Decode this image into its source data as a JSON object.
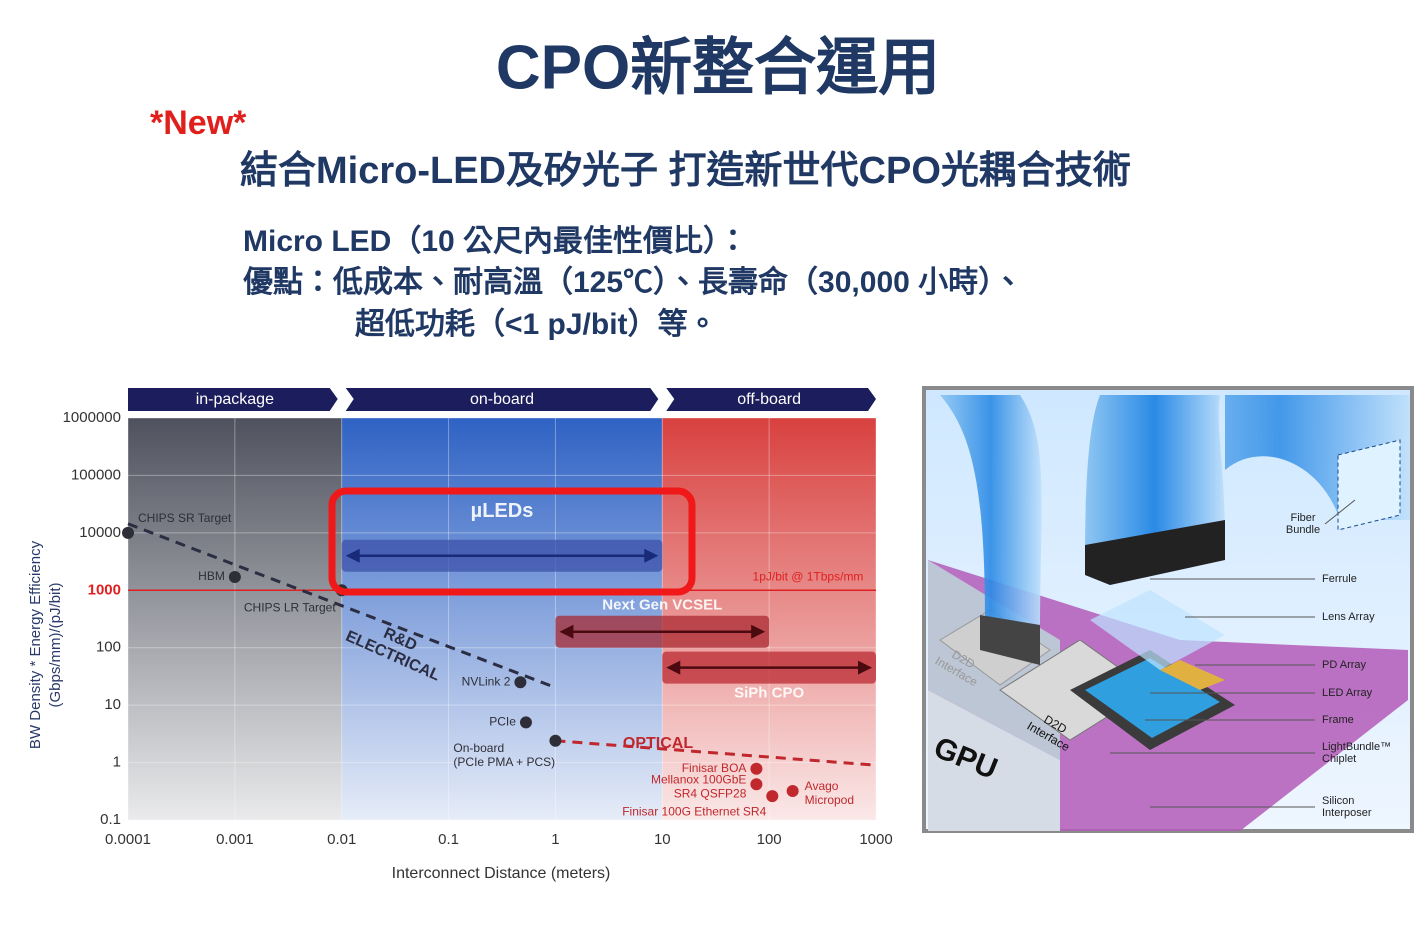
{
  "header": {
    "title": "CPO新整合運用",
    "tag": "*New*",
    "subtitle": "結合Micro-LED及矽光子 打造新世代CPO光耦合技術",
    "lines": [
      "Micro LED（10 公尺內最佳性價比）：",
      "優點：低成本、耐高溫（125℃）、長壽命（30,000 小時）、",
      "超低功耗（<1 pJ/bit）等。"
    ]
  },
  "chart_data": {
    "type": "scatter",
    "log_x": true,
    "log_y": true,
    "x_label": "Interconnect Distance (meters)",
    "y_label": [
      "BW Density * Energy Efficiency",
      "(Gbps/mm)/(pJ/bit)"
    ],
    "xlim": [
      0.0001,
      1000
    ],
    "xticks": [
      0.0001,
      0.001,
      0.01,
      0.1,
      1,
      10,
      100,
      1000
    ],
    "ylim": [
      0.1,
      1000000
    ],
    "yticks": [
      0.1,
      1,
      10,
      100,
      1000,
      10000,
      100000,
      1000000
    ],
    "grid": true,
    "zones": [
      {
        "label": "in-package",
        "from": 0.0001,
        "to": 0.01,
        "color": "#4f525e"
      },
      {
        "label": "on-board",
        "from": 0.01,
        "to": 10,
        "color": "#2f62c4"
      },
      {
        "label": "off-board",
        "from": 10,
        "to": 1000,
        "color": "#d8413f"
      }
    ],
    "reference_line": {
      "value": 1000,
      "label": "1pJ/bit @ 1Tbps/mm",
      "color": "#e02020"
    },
    "ranges": [
      {
        "label": "µLEDs",
        "from": 0.01,
        "to": 10,
        "y": 4000,
        "color": "#3b4fa8"
      },
      {
        "label": "Next Gen VCSEL",
        "from": 1,
        "to": 100,
        "y": 190,
        "color": "#a8262e"
      },
      {
        "label": "SiPh CPO",
        "from": 10,
        "to": 1000,
        "y": 45,
        "color": "#b8262e"
      }
    ],
    "series": [
      {
        "label": [
          "R&D",
          "ELECTRICAL"
        ],
        "color": "#2b2d42",
        "x": [
          0.0001,
          0.95
        ],
        "values": [
          14400,
          21
        ]
      },
      {
        "label": [
          "OPTICAL"
        ],
        "color": "#c0282d",
        "x": [
          1,
          1000
        ],
        "values": [
          2.4,
          0.9
        ]
      }
    ],
    "points": [
      {
        "label": [
          "CHIPS SR Target"
        ],
        "x": 0.0001,
        "y": 10000,
        "color": "#2e2e38"
      },
      {
        "label": [
          "HBM"
        ],
        "x": 0.001,
        "y": 1700,
        "color": "#2e2e38"
      },
      {
        "label": [
          "CHIPS LR Target"
        ],
        "x": 0.01,
        "y": 1000,
        "color": "#2e2e38"
      },
      {
        "label": [
          "NVLink 2"
        ],
        "x": 0.47,
        "y": 25,
        "color": "#2e2e38"
      },
      {
        "label": [
          "PCIe"
        ],
        "x": 0.53,
        "y": 5,
        "color": "#2e2e38"
      },
      {
        "label": [
          "On-board",
          "(PCIe  PMA + PCS)"
        ],
        "x": 1,
        "y": 2.4,
        "color": "#2e2e38"
      },
      {
        "label": [
          "Finisar BOA"
        ],
        "x": 76,
        "y": 0.78,
        "color": "#c0282d"
      },
      {
        "label": [
          "Mellanox 100GbE",
          "SR4 QSFP28"
        ],
        "x": 76,
        "y": 0.42,
        "color": "#c0282d"
      },
      {
        "label": [
          "Finisar 100G Ethernet SR4"
        ],
        "x": 107,
        "y": 0.26,
        "color": "#c0282d"
      },
      {
        "label": [
          "Avago",
          "Micropod"
        ],
        "x": 166,
        "y": 0.32,
        "color": "#c0282d"
      }
    ]
  },
  "diagram": {
    "gpu": "GPU",
    "d2d": [
      [
        "D2D",
        "Interface"
      ],
      [
        "D2D",
        "Interface"
      ]
    ],
    "callouts": [
      [
        "Fiber",
        "Bundle"
      ],
      [
        "Ferrule"
      ],
      [
        "Lens Array"
      ],
      [
        "PD Array"
      ],
      [
        "LED Array"
      ],
      [
        "Frame"
      ],
      [
        "LightBundle™",
        "Chiplet"
      ],
      [
        "Silicon",
        "Interposer"
      ]
    ]
  }
}
